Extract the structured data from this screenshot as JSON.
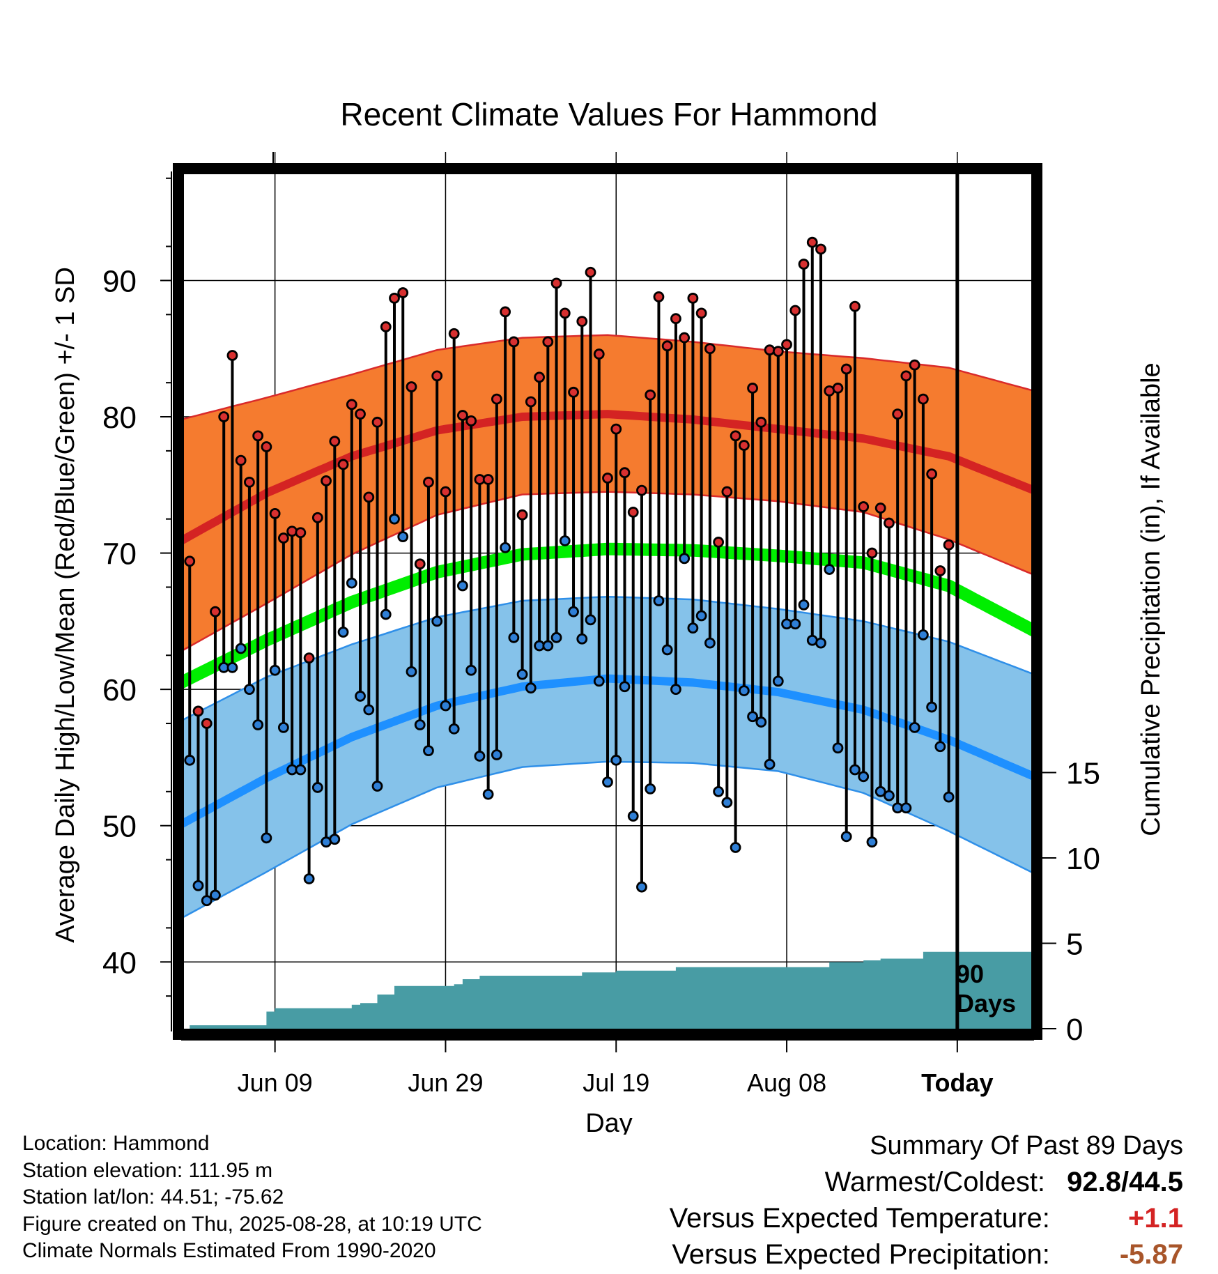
{
  "chart_data": {
    "type": "line",
    "title": "Recent Climate Values For Hammond",
    "xlabel": "Day",
    "ylabel_left": "Average Daily High/Low/Mean (Red/Blue/Green) +/- 1 SD",
    "ylabel_right": "Cumulative Precipitation (in), If Available",
    "x_range_days": [
      -91,
      9
    ],
    "left_ylim": [
      34.9,
      98
    ],
    "left_yticks": [
      40,
      50,
      60,
      70,
      80,
      90
    ],
    "right_ylim": [
      0,
      20
    ],
    "right_yticks": [
      0,
      5,
      10,
      15
    ],
    "x_tick_labels": [
      {
        "day": -80,
        "label": "Jun 09"
      },
      {
        "day": -60,
        "label": "Jun 29"
      },
      {
        "day": -40,
        "label": "Jul 19"
      },
      {
        "day": -20,
        "label": "Aug 08"
      },
      {
        "day": 0,
        "label": "Today"
      }
    ],
    "period_label_line1": "90",
    "period_label_line2": "Days",
    "grid": true,
    "colors": {
      "high_band": "#f57b2f",
      "high_band_edge": "#d92a2a",
      "high_mean": "#d42323",
      "low_band": "#85c2ea",
      "low_band_edge": "#2f8fe8",
      "low_mean": "#1e90ff",
      "mean": "#00ee00",
      "precip": "#489ca4",
      "high_dot": "#d83030",
      "low_dot": "#2f7fd6"
    },
    "normals": {
      "days": [
        -91,
        -81,
        -71,
        -61,
        -51,
        -41,
        -31,
        -21,
        -11,
        -1,
        9
      ],
      "high_mean": [
        70.9,
        74.4,
        77.1,
        79.0,
        80.0,
        80.2,
        79.8,
        79.1,
        78.4,
        77.1,
        74.6
      ],
      "high_plus_sd": [
        79.8,
        81.4,
        83.1,
        84.9,
        85.8,
        86.0,
        85.5,
        84.8,
        84.3,
        83.6,
        81.9
      ],
      "high_minus_sd": [
        62.8,
        66.3,
        69.9,
        72.8,
        74.3,
        74.5,
        74.3,
        73.8,
        73.0,
        71.0,
        68.4
      ],
      "low_mean": [
        50.1,
        53.5,
        56.5,
        58.8,
        60.2,
        60.8,
        60.5,
        59.8,
        58.5,
        56.3,
        53.6
      ],
      "low_plus_sd": [
        57.7,
        60.9,
        63.3,
        65.3,
        66.5,
        66.8,
        66.6,
        65.9,
        65.0,
        63.5,
        61.1
      ],
      "low_minus_sd": [
        43.2,
        46.6,
        50.1,
        52.8,
        54.3,
        54.7,
        54.6,
        54.0,
        52.4,
        49.6,
        46.5
      ],
      "mean": [
        60.5,
        63.6,
        66.4,
        68.6,
        69.9,
        70.3,
        70.2,
        69.8,
        69.3,
        67.6,
        64.3
      ]
    },
    "daily_days_start": -90,
    "daily_high": [
      69.4,
      58.4,
      57.5,
      65.7,
      80.0,
      84.5,
      76.8,
      75.2,
      78.6,
      77.8,
      72.9,
      71.1,
      71.6,
      71.5,
      62.3,
      72.6,
      75.3,
      78.2,
      76.5,
      80.9,
      80.2,
      74.1,
      79.6,
      86.6,
      88.7,
      89.1,
      82.2,
      69.2,
      75.2,
      83.0,
      74.5,
      86.1,
      80.1,
      79.7,
      75.4,
      75.4,
      81.3,
      87.7,
      85.5,
      72.8,
      81.1,
      82.9,
      85.5,
      89.8,
      87.6,
      81.8,
      87.0,
      90.6,
      84.6,
      75.5,
      79.1,
      75.9,
      73.0,
      74.6,
      81.6,
      88.8,
      85.2,
      87.2,
      85.8,
      88.7,
      87.6,
      85.0,
      70.8,
      74.5,
      78.6,
      77.9,
      82.1,
      79.6,
      84.9,
      84.8,
      85.3,
      87.8,
      91.2,
      92.8,
      92.3,
      81.9,
      82.1,
      83.5,
      88.1,
      73.4,
      70.0,
      73.3,
      72.2,
      80.2,
      83.0,
      83.8,
      81.3,
      75.8,
      68.7,
      70.6
    ],
    "daily_low": [
      54.8,
      45.6,
      44.5,
      44.9,
      61.6,
      61.6,
      63.0,
      60.0,
      57.4,
      49.1,
      61.4,
      57.2,
      54.1,
      54.1,
      46.1,
      52.8,
      48.8,
      49.0,
      64.2,
      67.8,
      59.5,
      58.5,
      52.9,
      65.5,
      72.5,
      71.2,
      61.3,
      57.4,
      55.5,
      65.0,
      58.8,
      57.1,
      67.6,
      61.4,
      55.1,
      52.3,
      55.2,
      70.4,
      63.8,
      61.1,
      60.1,
      63.2,
      63.2,
      63.8,
      70.9,
      65.7,
      63.7,
      65.1,
      60.6,
      53.2,
      54.8,
      60.2,
      50.7,
      45.5,
      52.7,
      66.5,
      62.9,
      60.0,
      69.6,
      64.5,
      65.4,
      63.4,
      52.5,
      51.7,
      48.4,
      59.9,
      58.0,
      57.6,
      54.5,
      60.6,
      64.8,
      64.8,
      66.2,
      63.6,
      63.4,
      68.8,
      55.7,
      49.2,
      54.1,
      53.6,
      48.8,
      52.5,
      52.2,
      51.3,
      51.3,
      57.2,
      64.0,
      58.7,
      55.8,
      52.1
    ],
    "precip_cumulative": [
      0.0,
      0.2,
      0.2,
      0.2,
      0.2,
      0.2,
      0.2,
      0.2,
      0.2,
      0.2,
      1.0,
      1.2,
      1.2,
      1.2,
      1.2,
      1.2,
      1.2,
      1.2,
      1.2,
      1.2,
      1.4,
      1.5,
      1.5,
      2.0,
      2.0,
      2.5,
      2.5,
      2.5,
      2.5,
      2.5,
      2.5,
      2.5,
      2.6,
      2.9,
      2.9,
      3.1,
      3.1,
      3.1,
      3.1,
      3.1,
      3.1,
      3.1,
      3.1,
      3.1,
      3.1,
      3.1,
      3.1,
      3.3,
      3.3,
      3.3,
      3.3,
      3.4,
      3.4,
      3.4,
      3.4,
      3.4,
      3.4,
      3.4,
      3.6,
      3.6,
      3.6,
      3.6,
      3.6,
      3.6,
      3.6,
      3.6,
      3.6,
      3.6,
      3.6,
      3.6,
      3.6,
      3.6,
      3.6,
      3.6,
      3.6,
      3.6,
      3.9,
      3.9,
      3.9,
      3.9,
      4.0,
      4.0,
      4.1,
      4.1,
      4.1,
      4.1,
      4.1,
      4.5,
      4.5,
      4.5,
      4.5,
      4.5
    ]
  },
  "meta": {
    "location": "Location: Hammond",
    "elevation": "Station elevation: 111.95 m",
    "latlon": "Station lat/lon: 44.51; -75.62",
    "created": "Figure created on Thu, 2025-08-28, at 10:19 UTC",
    "normals": "Climate Normals Estimated From 1990-2020"
  },
  "summary": {
    "title": "Summary Of Past 89 Days",
    "warmest_coldest_label": "Warmest/Coldest:",
    "warmest_coldest_value": "92.8/44.5",
    "temp_label": "Versus Expected Temperature:",
    "temp_value": "+1.1",
    "temp_color": "#d42323",
    "precip_label": "Versus Expected Precipitation:",
    "precip_value": "-5.87",
    "precip_color": "#a8552a"
  }
}
